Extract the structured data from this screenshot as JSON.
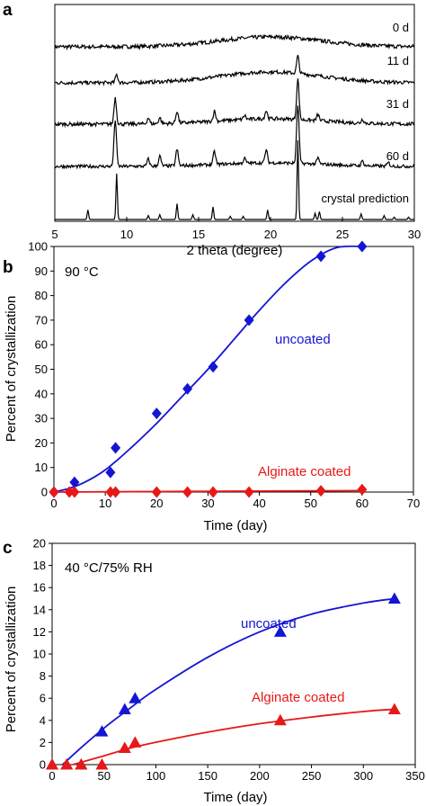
{
  "chart_data": [
    {
      "panel": "a",
      "type": "line",
      "xlabel": "2 theta (degree)",
      "ylabel": "",
      "xlim": [
        5,
        30
      ],
      "xticks": [
        5,
        10,
        15,
        20,
        25,
        30
      ],
      "grid": false,
      "series": [
        {
          "name": "0 d",
          "peaks": [],
          "noise": 0.55,
          "hump_center": 20,
          "hump_width": 5,
          "hump_height": 11,
          "peak_scale": 1
        },
        {
          "name": "11 d",
          "peaks": [
            [
              9.3,
              0.25
            ],
            [
              21.9,
              0.55
            ]
          ],
          "noise": 0.5,
          "hump_center": 20,
          "hump_width": 5,
          "hump_height": 12,
          "peak_scale": 1
        },
        {
          "name": "31 d",
          "peaks": [
            [
              9.2,
              0.65
            ],
            [
              11.5,
              0.15
            ],
            [
              12.3,
              0.15
            ],
            [
              13.5,
              0.3
            ],
            [
              16.1,
              0.25
            ],
            [
              18.2,
              0.1
            ],
            [
              19.7,
              0.2
            ],
            [
              21.9,
              1.0
            ],
            [
              23.3,
              0.15
            ],
            [
              26.4,
              0.1
            ]
          ],
          "noise": 0.5,
          "hump_center": 20,
          "hump_width": 5,
          "hump_height": 6,
          "peak_scale": 1
        },
        {
          "name": "60 d",
          "peaks": [
            [
              9.2,
              0.8
            ],
            [
              11.5,
              0.12
            ],
            [
              12.3,
              0.17
            ],
            [
              13.5,
              0.28
            ],
            [
              16.1,
              0.22
            ],
            [
              18.2,
              0.08
            ],
            [
              19.7,
              0.22
            ],
            [
              21.9,
              1.0
            ],
            [
              23.3,
              0.1
            ],
            [
              26.4,
              0.08
            ],
            [
              28.2,
              0.06
            ]
          ],
          "noise": 0.45,
          "hump_center": 20,
          "hump_width": 5,
          "hump_height": 4,
          "peak_scale": 1
        },
        {
          "name": "crystal prediction",
          "peaks": [
            [
              7.3,
              0.12
            ],
            [
              9.3,
              0.58
            ],
            [
              11.5,
              0.05
            ],
            [
              12.3,
              0.06
            ],
            [
              13.5,
              0.2
            ],
            [
              14.6,
              0.06
            ],
            [
              16.0,
              0.16
            ],
            [
              17.2,
              0.04
            ],
            [
              18.1,
              0.04
            ],
            [
              19.8,
              0.12
            ],
            [
              21.9,
              1.0
            ],
            [
              23.1,
              0.08
            ],
            [
              23.4,
              0.1
            ],
            [
              26.3,
              0.07
            ],
            [
              27.9,
              0.05
            ],
            [
              28.6,
              0.03
            ],
            [
              29.6,
              0.03
            ]
          ],
          "noise": 0,
          "hump_center": 20,
          "hump_width": 5,
          "hump_height": 0,
          "peak_scale": 1
        }
      ]
    },
    {
      "panel": "b",
      "type": "scatter",
      "annotation": "90 °C",
      "xlabel": "Time (day)",
      "ylabel": "Percent of crystallization",
      "xlim": [
        0,
        70
      ],
      "ylim": [
        0,
        100
      ],
      "xticks": [
        0,
        10,
        20,
        30,
        40,
        50,
        60,
        70
      ],
      "yticks": [
        0,
        10,
        20,
        30,
        40,
        50,
        60,
        70,
        80,
        90,
        100
      ],
      "grid": false,
      "series": [
        {
          "name": "uncoated",
          "color": "#1515d4",
          "marker": "diamond",
          "x": [
            0,
            4,
            11,
            12,
            20,
            26,
            31,
            38,
            52,
            60
          ],
          "y": [
            0,
            4,
            8,
            18,
            32,
            42,
            51,
            70,
            96,
            100
          ],
          "fit": {
            "x": [
              0,
              3,
              6,
              10,
              15,
              20,
              25,
              30,
              35,
              40,
              45,
              50,
              55,
              60
            ],
            "y": [
              0,
              1.5,
              4,
              9,
              18,
              28,
              39,
              50,
              62,
              74,
              85,
              94,
              99.5,
              100
            ]
          }
        },
        {
          "name": "Alginate coated",
          "color": "#e81818",
          "marker": "diamond",
          "x": [
            0,
            3,
            4,
            11,
            12,
            20,
            26,
            31,
            38,
            52,
            60
          ],
          "y": [
            0,
            0,
            0,
            0,
            0,
            0,
            0,
            0,
            0,
            0.5,
            1
          ],
          "fit": {
            "x": [
              0,
              60
            ],
            "y": [
              0,
              0.6
            ]
          }
        }
      ]
    },
    {
      "panel": "c",
      "type": "scatter",
      "annotation": "40 °C/75% RH",
      "xlabel": "Time (day)",
      "ylabel": "Percent of crystallization",
      "xlim": [
        0,
        350
      ],
      "ylim": [
        0,
        20
      ],
      "xticks": [
        0,
        50,
        100,
        150,
        200,
        250,
        300,
        350
      ],
      "yticks": [
        0,
        2,
        4,
        6,
        8,
        10,
        12,
        14,
        16,
        18,
        20
      ],
      "grid": false,
      "series": [
        {
          "name": "uncoated",
          "color": "#1515d4",
          "marker": "triangle",
          "x": [
            0,
            14,
            28,
            48,
            70,
            80,
            220,
            330
          ],
          "y": [
            0,
            0,
            0,
            3,
            5,
            6,
            12,
            15
          ],
          "fit": {
            "x": [
              10,
              30,
              50,
              75,
              100,
              150,
              200,
              250,
              300,
              330
            ],
            "y": [
              0,
              1.7,
              3.3,
              5.1,
              6.8,
              9.7,
              12.0,
              13.6,
              14.6,
              15.0
            ]
          }
        },
        {
          "name": "Alginate coated",
          "color": "#e81818",
          "marker": "triangle",
          "x": [
            0,
            14,
            28,
            48,
            70,
            80,
            220,
            330
          ],
          "y": [
            0,
            0,
            0,
            0,
            1.5,
            2,
            4,
            5
          ],
          "fit": {
            "x": [
              20,
              50,
              80,
              120,
              160,
              200,
              250,
              300,
              330
            ],
            "y": [
              0,
              0.8,
              1.6,
              2.4,
              3.1,
              3.7,
              4.3,
              4.8,
              5.0
            ]
          }
        }
      ]
    }
  ],
  "labels": {
    "panel_a": "a",
    "panel_b": "b",
    "panel_c": "c",
    "b_uncoated": "uncoated",
    "b_coated": "Alginate coated",
    "c_uncoated": "uncoated",
    "c_coated": "Alginate coated"
  }
}
